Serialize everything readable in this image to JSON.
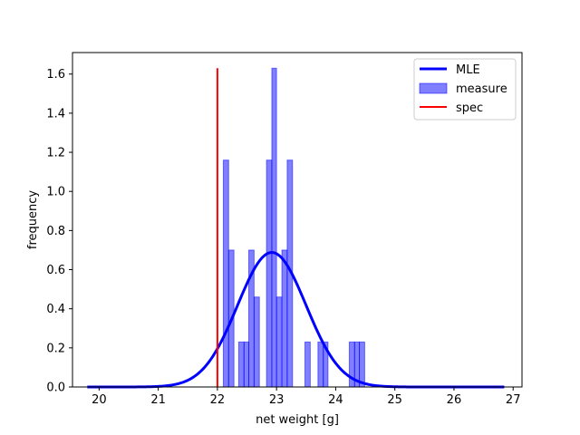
{
  "chart_data": {
    "type": "histogram",
    "title": "",
    "xlabel": "net weight [g]",
    "ylabel": "frequency",
    "xlim": [
      19.55,
      27.15
    ],
    "ylim": [
      0,
      1.71
    ],
    "xticks": [
      "20",
      "21",
      "22",
      "23",
      "24",
      "25",
      "26",
      "27"
    ],
    "yticks": [
      "0.0",
      "0.2",
      "0.4",
      "0.6",
      "0.8",
      "1.0",
      "1.2",
      "1.4",
      "1.6"
    ],
    "grid": false,
    "legend_position": "top-right",
    "bin_width": 0.0862,
    "histogram": {
      "name": "measure",
      "color": "#0000ff",
      "alpha": 0.5,
      "bins": [
        {
          "x0": 22.1,
          "x1": 22.19,
          "y": 1.16
        },
        {
          "x0": 22.19,
          "x1": 22.28,
          "y": 0.7
        },
        {
          "x0": 22.36,
          "x1": 22.45,
          "y": 0.23
        },
        {
          "x0": 22.45,
          "x1": 22.53,
          "y": 0.23
        },
        {
          "x0": 22.53,
          "x1": 22.62,
          "y": 0.7
        },
        {
          "x0": 22.62,
          "x1": 22.71,
          "y": 0.46
        },
        {
          "x0": 22.83,
          "x1": 22.92,
          "y": 1.16
        },
        {
          "x0": 22.92,
          "x1": 23.0,
          "y": 1.63
        },
        {
          "x0": 23.0,
          "x1": 23.09,
          "y": 0.46
        },
        {
          "x0": 23.09,
          "x1": 23.18,
          "y": 0.7
        },
        {
          "x0": 23.18,
          "x1": 23.27,
          "y": 1.16
        },
        {
          "x0": 23.48,
          "x1": 23.57,
          "y": 0.23
        },
        {
          "x0": 23.7,
          "x1": 23.79,
          "y": 0.23
        },
        {
          "x0": 23.79,
          "x1": 23.87,
          "y": 0.23
        },
        {
          "x0": 24.23,
          "x1": 24.32,
          "y": 0.23
        },
        {
          "x0": 24.32,
          "x1": 24.4,
          "y": 0.23
        },
        {
          "x0": 24.4,
          "x1": 24.49,
          "y": 0.23
        }
      ]
    },
    "mle": {
      "name": "MLE",
      "color": "#0000ff",
      "type": "normal-pdf",
      "mean": 22.92,
      "std": 0.58,
      "x_range": [
        19.8,
        26.85
      ]
    },
    "spec": {
      "name": "spec",
      "color": "#ff0000",
      "x": 22.0,
      "y_range": [
        0,
        1.63
      ]
    },
    "legend": [
      "MLE",
      "measure",
      "spec"
    ]
  }
}
